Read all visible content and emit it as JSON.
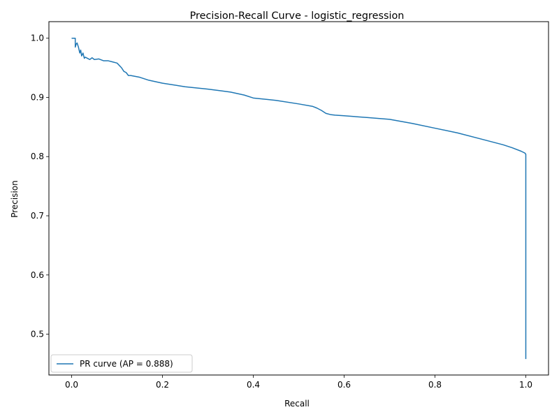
{
  "chart_data": {
    "type": "line",
    "title": "Precision-Recall Curve - logistic_regression",
    "xlabel": "Recall",
    "ylabel": "Precision",
    "xlim": [
      -0.05,
      1.05
    ],
    "ylim": [
      0.431,
      1.028
    ],
    "xticks": [
      0.0,
      0.2,
      0.4,
      0.6,
      0.8,
      1.0
    ],
    "xtick_labels": [
      "0.0",
      "0.2",
      "0.4",
      "0.6",
      "0.8",
      "1.0"
    ],
    "yticks": [
      0.5,
      0.6,
      0.7,
      0.8,
      0.9,
      1.0
    ],
    "ytick_labels": [
      "0.5",
      "0.6",
      "0.7",
      "0.8",
      "0.9",
      "1.0"
    ],
    "grid": false,
    "legend": {
      "position": "lower-left",
      "entries": [
        "PR curve (AP = 0.888)"
      ]
    },
    "series": [
      {
        "name": "PR curve (AP = 0.888)",
        "color": "#1f77b4",
        "x": [
          0.0,
          0.008,
          0.008,
          0.01,
          0.012,
          0.015,
          0.018,
          0.02,
          0.022,
          0.025,
          0.028,
          0.03,
          0.035,
          0.04,
          0.045,
          0.05,
          0.06,
          0.07,
          0.08,
          0.09,
          0.1,
          0.11,
          0.115,
          0.12,
          0.125,
          0.13,
          0.15,
          0.17,
          0.2,
          0.25,
          0.3,
          0.33,
          0.35,
          0.38,
          0.4,
          0.45,
          0.5,
          0.53,
          0.54,
          0.55,
          0.56,
          0.57,
          0.58,
          0.6,
          0.65,
          0.7,
          0.75,
          0.8,
          0.85,
          0.9,
          0.95,
          0.97,
          0.99,
          0.998,
          1.0,
          1.0,
          1.0
        ],
        "y": [
          1.0,
          1.0,
          0.985,
          0.99,
          0.992,
          0.985,
          0.975,
          0.98,
          0.97,
          0.975,
          0.966,
          0.968,
          0.966,
          0.964,
          0.967,
          0.964,
          0.965,
          0.962,
          0.962,
          0.96,
          0.958,
          0.95,
          0.944,
          0.942,
          0.937,
          0.937,
          0.934,
          0.929,
          0.924,
          0.918,
          0.914,
          0.911,
          0.909,
          0.904,
          0.899,
          0.895,
          0.889,
          0.885,
          0.882,
          0.878,
          0.873,
          0.871,
          0.87,
          0.869,
          0.866,
          0.863,
          0.856,
          0.848,
          0.84,
          0.83,
          0.82,
          0.815,
          0.809,
          0.806,
          0.804,
          0.79,
          0.458
        ]
      }
    ]
  }
}
